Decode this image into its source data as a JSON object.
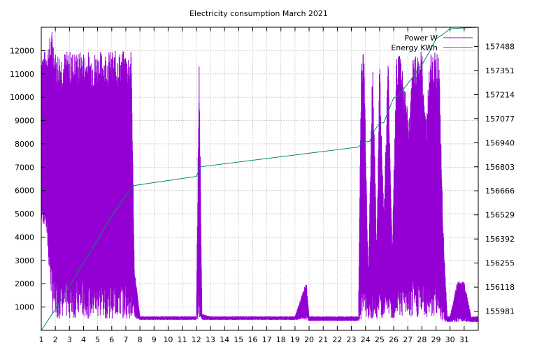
{
  "chart_data": {
    "type": "line",
    "title": "Electricity consumption March 2021",
    "xlabel": "",
    "ylabel": "",
    "y2label": "",
    "grid": true,
    "legend_position": "top-right",
    "x_ticks": [
      "1",
      "2",
      "3",
      "4",
      "5",
      "6",
      "7",
      "8",
      "9",
      "10",
      "11",
      "12",
      "13",
      "14",
      "15",
      "16",
      "17",
      "18",
      "19",
      "20",
      "21",
      "22",
      "23",
      "24",
      "25",
      "26",
      "27",
      "28",
      "29",
      "30",
      "31"
    ],
    "y_left_ticks": [
      1000,
      2000,
      3000,
      4000,
      5000,
      6000,
      7000,
      8000,
      9000,
      10000,
      11000,
      12000
    ],
    "y_right_ticks": [
      155981,
      156118,
      156255,
      156392,
      156529,
      156666,
      156803,
      156940,
      157077,
      157214,
      157351,
      157488
    ],
    "xlim": [
      1,
      32
    ],
    "ylim_left": [
      0,
      13000
    ],
    "ylim_right": [
      155872,
      157597
    ],
    "series": [
      {
        "name": "Power W",
        "axis": "left",
        "color": "#9400d3",
        "x": [
          1.0,
          1.3,
          1.8,
          2.0,
          2.5,
          3.0,
          3.5,
          4.0,
          4.5,
          5.0,
          5.5,
          6.0,
          6.5,
          7.0,
          7.4,
          7.6,
          8.0,
          9.0,
          10.0,
          11.0,
          12.0,
          12.2,
          12.4,
          13.0,
          14.0,
          15.0,
          16.0,
          17.0,
          18.0,
          19.0,
          19.8,
          20.0,
          21.0,
          22.0,
          23.0,
          23.5,
          23.7,
          23.9,
          24.2,
          24.5,
          24.8,
          25.0,
          25.3,
          25.6,
          25.9,
          26.2,
          26.5,
          26.8,
          27.1,
          27.4,
          27.7,
          28.0,
          28.3,
          28.6,
          28.9,
          29.2,
          29.5,
          29.8,
          30.0,
          30.5,
          31.0,
          31.5
        ],
        "y_upper": [
          12000,
          12000,
          13000,
          12000,
          12000,
          12000,
          12000,
          12000,
          12000,
          12000,
          12000,
          12000,
          12000,
          12000,
          12000,
          2700,
          600,
          600,
          600,
          600,
          600,
          12000,
          700,
          600,
          600,
          600,
          600,
          600,
          600,
          600,
          2100,
          600,
          600,
          600,
          600,
          600,
          12000,
          12000,
          2300,
          12000,
          3500,
          12000,
          5000,
          12000,
          3500,
          12000,
          12000,
          10500,
          9000,
          12000,
          12000,
          12000,
          9000,
          12000,
          12000,
          12000,
          4500,
          600,
          600,
          2100,
          2100,
          600
        ],
        "y_lower": [
          4500,
          4500,
          700,
          500,
          500,
          500,
          500,
          500,
          500,
          500,
          500,
          500,
          500,
          500,
          500,
          500,
          450,
          450,
          450,
          450,
          450,
          450,
          450,
          450,
          450,
          450,
          450,
          450,
          450,
          450,
          450,
          400,
          400,
          400,
          400,
          400,
          400,
          500,
          500,
          500,
          500,
          500,
          500,
          500,
          500,
          500,
          500,
          500,
          500,
          500,
          500,
          500,
          500,
          500,
          500,
          500,
          400,
          350,
          350,
          350,
          350,
          350
        ]
      },
      {
        "name": "Energy KWh",
        "axis": "right",
        "color": "#008b6b",
        "x": [
          1.0,
          2.0,
          3.0,
          4.0,
          5.0,
          6.0,
          7.0,
          7.5,
          12.0,
          12.3,
          23.5,
          23.8,
          24.3,
          24.6,
          25.0,
          25.3,
          26.0,
          26.3,
          27.0,
          28.0,
          28.5,
          29.0,
          29.5,
          30.0,
          31.0,
          32.0
        ],
        "y": [
          155872,
          155992,
          156125,
          156257,
          156388,
          156525,
          156637,
          156695,
          156748,
          156803,
          156915,
          156942,
          156948,
          157005,
          157052,
          157054,
          157195,
          157204,
          157276,
          157383,
          157452,
          157531,
          157557,
          157589,
          157593,
          157597
        ]
      }
    ]
  }
}
